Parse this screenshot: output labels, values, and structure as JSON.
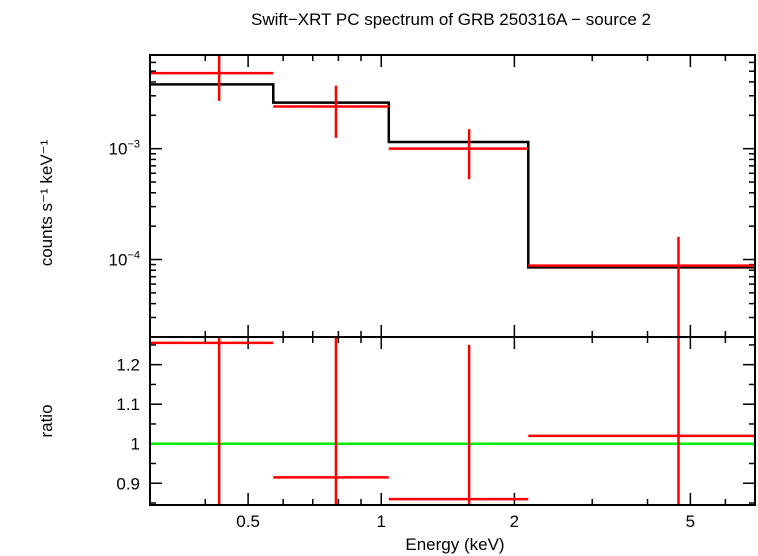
{
  "chart_data": [
    {
      "type": "line",
      "panel": "spectrum",
      "title": "Swift−XRT PC spectrum of GRB 250316A − source 2",
      "xlabel": "Energy (keV)",
      "ylabel": "counts s⁻¹ keV⁻¹",
      "xscale": "log",
      "yscale": "log",
      "xlim": [
        0.3,
        7.0
      ],
      "ylim": [
        2e-05,
        0.007
      ],
      "yticks": [
        {
          "value": 0.001,
          "base": "10",
          "exp": "−3"
        },
        {
          "value": 0.0001,
          "base": "10",
          "exp": "−4"
        }
      ],
      "colors": {
        "model": "#000000",
        "data": "#ff0000"
      },
      "series": [
        {
          "kind": "model-step",
          "bins": [
            {
              "lo": 0.3,
              "hi": 0.57,
              "y": 0.0038
            },
            {
              "lo": 0.57,
              "hi": 1.04,
              "y": 0.0026
            },
            {
              "lo": 1.04,
              "hi": 2.15,
              "y": 0.00115
            },
            {
              "lo": 2.15,
              "hi": 7.0,
              "y": 8.5e-05
            }
          ]
        },
        {
          "kind": "data",
          "points": [
            {
              "x": 0.43,
              "xlo": 0.3,
              "xhi": 0.57,
              "y": 0.0048,
              "ylo": 0.0027,
              "yhi": 0.0072
            },
            {
              "x": 0.79,
              "xlo": 0.57,
              "xhi": 1.04,
              "y": 0.0024,
              "ylo": 0.00125,
              "yhi": 0.0037
            },
            {
              "x": 1.58,
              "xlo": 1.04,
              "xhi": 2.15,
              "y": 0.001,
              "ylo": 0.00053,
              "yhi": 0.0015
            },
            {
              "x": 4.7,
              "xlo": 2.15,
              "xhi": 7.0,
              "y": 8.8e-05,
              "ylo": 2e-05,
              "yhi": 0.00016
            }
          ]
        }
      ]
    },
    {
      "type": "scatter",
      "panel": "ratio",
      "xlabel": "Energy (keV)",
      "ylabel": "ratio",
      "xscale": "log",
      "xlim": [
        0.3,
        7.0
      ],
      "ylim": [
        0.845,
        1.27
      ],
      "xticks": [
        {
          "value": 0.5,
          "label": "0.5"
        },
        {
          "value": 1,
          "label": "1"
        },
        {
          "value": 2,
          "label": "2"
        },
        {
          "value": 5,
          "label": "5"
        }
      ],
      "yticks": [
        {
          "value": 0.9,
          "label": "0.9"
        },
        {
          "value": 1.0,
          "label": "1"
        },
        {
          "value": 1.1,
          "label": "1.1"
        },
        {
          "value": 1.2,
          "label": "1.2"
        }
      ],
      "reference_line": {
        "y": 1.0,
        "color": "#00ee00"
      },
      "colors": {
        "data": "#ff0000"
      },
      "points": [
        {
          "x": 0.43,
          "xlo": 0.3,
          "xhi": 0.57,
          "y": 1.255,
          "ylo": 0.845,
          "yhi": 1.27
        },
        {
          "x": 0.79,
          "xlo": 0.57,
          "xhi": 1.04,
          "y": 0.915,
          "ylo": 0.845,
          "yhi": 1.27
        },
        {
          "x": 1.58,
          "xlo": 1.04,
          "xhi": 2.15,
          "y": 0.86,
          "ylo": 0.845,
          "yhi": 1.25
        },
        {
          "x": 4.7,
          "xlo": 2.15,
          "xhi": 7.0,
          "y": 1.02,
          "ylo": 0.845,
          "yhi": 1.27
        }
      ]
    }
  ]
}
